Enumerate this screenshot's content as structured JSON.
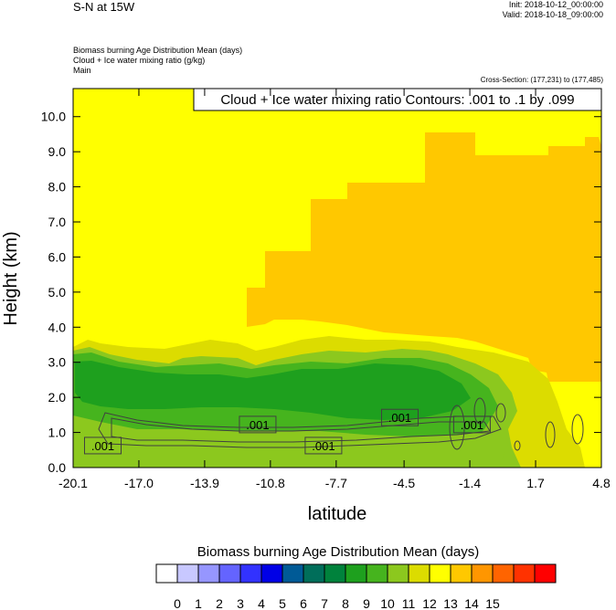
{
  "header": {
    "title": "S-N at 15W",
    "init": "Init: 2018-10-12_00:00:00",
    "valid": "Valid: 2018-10-18_09:00:00",
    "subtitles": [
      "Biomass burning Age Distribution Mean   (days)",
      "Cloud + Ice water mixing ratio   (g/kg)",
      "Main"
    ],
    "cross_section": "Cross-Section: (177,231) to (177,485)"
  },
  "chart_data": {
    "type": "heatmap",
    "ylabel": "Height (km)",
    "xlabel": "latitude",
    "xlim": [
      -20.1,
      4.8
    ],
    "ylim": [
      0.0,
      10.8
    ],
    "x_ticks": [
      "-20.1",
      "-17.0",
      "-13.9",
      "-10.8",
      "-7.7",
      "-4.5",
      "-1.4",
      "1.7",
      "4.8"
    ],
    "y_ticks": [
      "0.0",
      "1.0",
      "2.0",
      "3.0",
      "4.0",
      "5.0",
      "6.0",
      "7.0",
      "8.0",
      "9.0",
      "10.0"
    ],
    "contour_label": "Cloud + Ice water mixing ratio Contours: .001 to .1 by .099",
    "contour_line_labels": [
      {
        "text": ".001",
        "x": -18.7,
        "y": 0.6
      },
      {
        "text": ".001",
        "x": -11.4,
        "y": 1.2
      },
      {
        "text": ".001",
        "x": -8.3,
        "y": 0.6
      },
      {
        "text": ".001",
        "x": -4.7,
        "y": 1.4
      },
      {
        "text": ".001",
        "x": -1.3,
        "y": 1.2
      }
    ],
    "colorbar": {
      "title": "Biomass burning Age Distribution Mean  (days)",
      "labels": [
        "0",
        "1",
        "2",
        "3",
        "4",
        "5",
        "6",
        "7",
        "8",
        "9",
        "10",
        "11",
        "12",
        "13",
        "14",
        "15"
      ],
      "colors": [
        "#ffffff",
        "#c8c8ff",
        "#9696ff",
        "#6464ff",
        "#3232ff",
        "#0000e6",
        "#005a96",
        "#006e5a",
        "#00823c",
        "#1ea01e",
        "#46b41e",
        "#8cc81e",
        "#dcdc00",
        "#ffff00",
        "#ffc800",
        "#ff9600",
        "#ff6400",
        "#ff3200",
        "#ff0000"
      ]
    },
    "fields": {
      "age_days": [
        {
          "level": 11,
          "region": "lower-troposphere background"
        },
        {
          "level": 12,
          "region": "upper-level plume, lat -15 to 4.8"
        },
        {
          "level": 8,
          "region": "boundary-layer band, height 1 to 3 km"
        },
        {
          "level": 7,
          "region": "boundary-layer core, height 1.5 to 2 km"
        }
      ]
    }
  }
}
